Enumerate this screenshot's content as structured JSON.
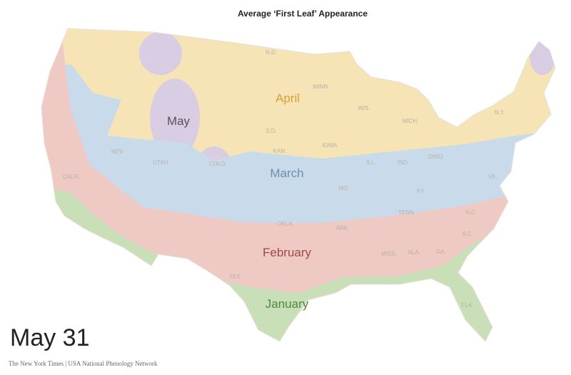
{
  "title": "Average ‘First Leaf’ Appearance",
  "zones": [
    "April",
    "May",
    "March",
    "February",
    "January"
  ],
  "states": [
    "N.D.",
    "S.D.",
    "MINN.",
    "WIS.",
    "IOWA",
    "MICH.",
    "N.Y.",
    "OHIO",
    "IND.",
    "ILL.",
    "MO.",
    "KAN.",
    "KY.",
    "VA.",
    "TENN.",
    "N.C.",
    "S.C.",
    "ARK.",
    "OKLA.",
    "MISS.",
    "ALA.",
    "GA.",
    "TEX.",
    "FLA.",
    "CALIF.",
    "NEV.",
    "UTAH",
    "COLO."
  ],
  "date": "May 31",
  "source": "The New York Times | USA National Phenology Network"
}
